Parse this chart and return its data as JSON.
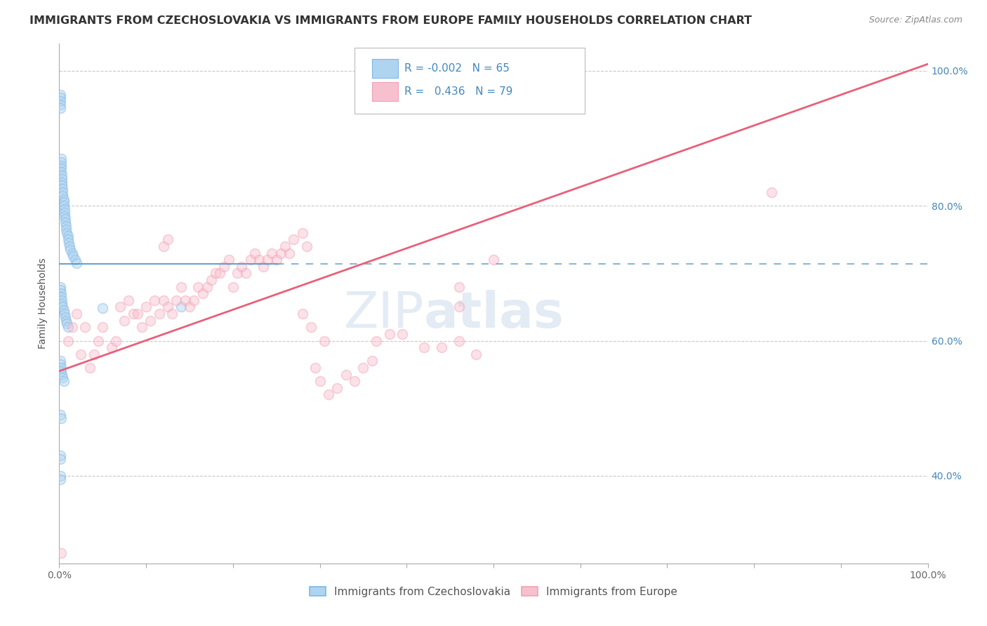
{
  "title": "IMMIGRANTS FROM CZECHOSLOVAKIA VS IMMIGRANTS FROM EUROPE FAMILY HOUSEHOLDS CORRELATION CHART",
  "source": "Source: ZipAtlas.com",
  "ylabel": "Family Households",
  "legend_label_blue": "Immigrants from Czechoslovakia",
  "legend_label_pink": "Immigrants from Europe",
  "R_blue": -0.002,
  "N_blue": 65,
  "R_pink": 0.436,
  "N_pink": 79,
  "blue_color": "#7EB6E8",
  "pink_color": "#F4A0B5",
  "trend_blue_color": "#5599CC",
  "trend_pink_color": "#E8607A",
  "xlim": [
    0.0,
    1.0
  ],
  "ylim": [
    0.27,
    1.04
  ],
  "right_yticks": [
    0.4,
    0.6,
    0.8,
    1.0
  ],
  "right_yticklabels": [
    "40.0%",
    "60.0%",
    "80.0%",
    "100.0%"
  ],
  "blue_scatter_x": [
    0.001,
    0.001,
    0.001,
    0.001,
    0.001,
    0.002,
    0.002,
    0.002,
    0.002,
    0.002,
    0.003,
    0.003,
    0.003,
    0.003,
    0.004,
    0.004,
    0.004,
    0.005,
    0.005,
    0.005,
    0.006,
    0.006,
    0.006,
    0.007,
    0.007,
    0.008,
    0.008,
    0.009,
    0.01,
    0.01,
    0.011,
    0.012,
    0.013,
    0.015,
    0.016,
    0.018,
    0.02,
    0.001,
    0.001,
    0.002,
    0.002,
    0.003,
    0.003,
    0.004,
    0.005,
    0.006,
    0.007,
    0.008,
    0.009,
    0.01,
    0.001,
    0.001,
    0.002,
    0.002,
    0.003,
    0.004,
    0.005,
    0.001,
    0.002,
    0.001,
    0.001,
    0.14,
    0.05,
    0.001,
    0.001
  ],
  "blue_scatter_y": [
    0.965,
    0.96,
    0.955,
    0.95,
    0.945,
    0.87,
    0.865,
    0.86,
    0.855,
    0.85,
    0.845,
    0.84,
    0.835,
    0.83,
    0.825,
    0.82,
    0.815,
    0.81,
    0.805,
    0.8,
    0.795,
    0.79,
    0.785,
    0.78,
    0.775,
    0.77,
    0.765,
    0.76,
    0.755,
    0.75,
    0.745,
    0.74,
    0.735,
    0.73,
    0.725,
    0.72,
    0.715,
    0.68,
    0.675,
    0.67,
    0.665,
    0.66,
    0.655,
    0.65,
    0.645,
    0.64,
    0.635,
    0.63,
    0.625,
    0.62,
    0.57,
    0.565,
    0.56,
    0.555,
    0.55,
    0.545,
    0.54,
    0.49,
    0.485,
    0.43,
    0.425,
    0.65,
    0.648,
    0.4,
    0.395
  ],
  "pink_scatter_x": [
    0.002,
    0.01,
    0.015,
    0.02,
    0.025,
    0.03,
    0.035,
    0.04,
    0.045,
    0.05,
    0.06,
    0.065,
    0.07,
    0.075,
    0.08,
    0.085,
    0.09,
    0.095,
    0.1,
    0.105,
    0.11,
    0.115,
    0.12,
    0.125,
    0.13,
    0.135,
    0.14,
    0.145,
    0.15,
    0.155,
    0.16,
    0.165,
    0.17,
    0.175,
    0.18,
    0.185,
    0.19,
    0.195,
    0.2,
    0.205,
    0.21,
    0.215,
    0.22,
    0.225,
    0.23,
    0.235,
    0.24,
    0.245,
    0.25,
    0.255,
    0.26,
    0.265,
    0.27,
    0.28,
    0.285,
    0.295,
    0.3,
    0.31,
    0.32,
    0.33,
    0.34,
    0.35,
    0.36,
    0.12,
    0.125,
    0.5,
    0.28,
    0.82,
    0.46,
    0.46,
    0.29,
    0.305,
    0.365,
    0.38,
    0.395,
    0.42,
    0.44,
    0.46,
    0.48
  ],
  "pink_scatter_y": [
    0.285,
    0.6,
    0.62,
    0.64,
    0.58,
    0.62,
    0.56,
    0.58,
    0.6,
    0.62,
    0.59,
    0.6,
    0.65,
    0.63,
    0.66,
    0.64,
    0.64,
    0.62,
    0.65,
    0.63,
    0.66,
    0.64,
    0.66,
    0.65,
    0.64,
    0.66,
    0.68,
    0.66,
    0.65,
    0.66,
    0.68,
    0.67,
    0.68,
    0.69,
    0.7,
    0.7,
    0.71,
    0.72,
    0.68,
    0.7,
    0.71,
    0.7,
    0.72,
    0.73,
    0.72,
    0.71,
    0.72,
    0.73,
    0.72,
    0.73,
    0.74,
    0.73,
    0.75,
    0.76,
    0.74,
    0.56,
    0.54,
    0.52,
    0.53,
    0.55,
    0.54,
    0.56,
    0.57,
    0.74,
    0.75,
    0.72,
    0.64,
    0.82,
    0.65,
    0.68,
    0.62,
    0.6,
    0.6,
    0.61,
    0.61,
    0.59,
    0.59,
    0.6,
    0.58
  ],
  "background_color": "#FFFFFF",
  "grid_color": "#BBBBBB",
  "title_fontsize": 11.5,
  "axis_label_fontsize": 10,
  "tick_fontsize": 10,
  "marker_size": 10,
  "marker_alpha": 0.45
}
